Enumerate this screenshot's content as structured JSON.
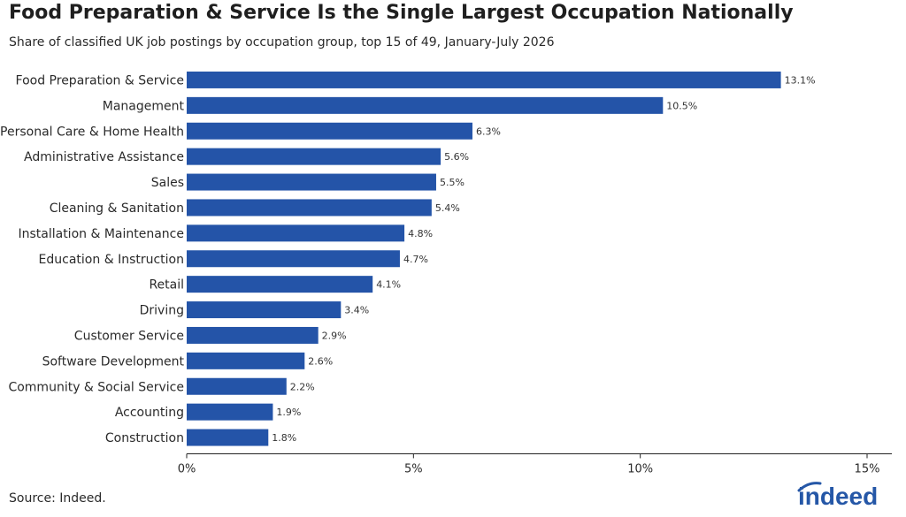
{
  "title": "Food Preparation & Service Is the Single Largest Occupation Nationally",
  "subtitle": "Share of classified UK job postings by occupation group, top 15 of 49, January-July 2026",
  "source": "Source: Indeed.",
  "logo": {
    "text": "indeed",
    "color": "#2557a7"
  },
  "chart_data": {
    "type": "bar",
    "orientation": "horizontal",
    "categories": [
      "Food Preparation & Service",
      "Management",
      "Personal Care & Home Health",
      "Administrative Assistance",
      "Sales",
      "Cleaning & Sanitation",
      "Installation & Maintenance",
      "Education & Instruction",
      "Retail",
      "Driving",
      "Customer Service",
      "Software Development",
      "Community & Social Service",
      "Accounting",
      "Construction"
    ],
    "values": [
      13.1,
      10.5,
      6.3,
      5.6,
      5.5,
      5.4,
      4.8,
      4.7,
      4.1,
      3.4,
      2.9,
      2.6,
      2.2,
      1.9,
      1.8
    ],
    "value_labels": [
      "13.1%",
      "10.5%",
      "6.3%",
      "5.6%",
      "5.5%",
      "5.4%",
      "4.8%",
      "4.7%",
      "4.1%",
      "3.4%",
      "2.9%",
      "2.6%",
      "2.2%",
      "1.9%",
      "1.8%"
    ],
    "xlim": [
      0,
      15
    ],
    "x_ticks": [
      0,
      5,
      10,
      15
    ],
    "x_tick_labels": [
      "0%",
      "5%",
      "10%",
      "15%"
    ],
    "bar_color": "#2454a8",
    "grid": false,
    "legend": "none"
  }
}
